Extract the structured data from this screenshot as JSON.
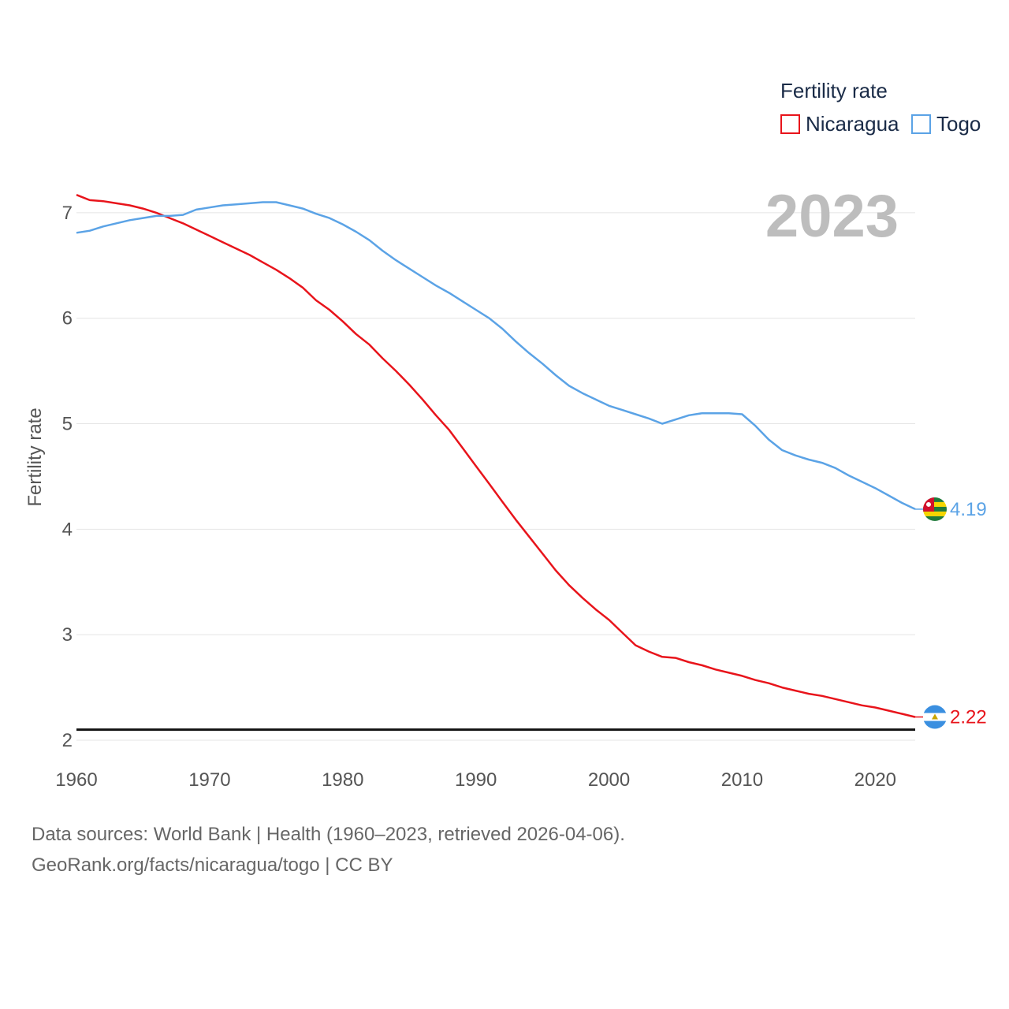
{
  "footer": {
    "source_line": "Data sources: World Bank | Health (1960–2023, retrieved 2026-04-06).",
    "credit_line": "GeoRank.org/facts/nicaragua/togo | CC BY"
  },
  "chart_data": {
    "type": "line",
    "title": "Fertility rate",
    "ylabel": "Fertility rate",
    "xlabel": "",
    "current_year_label": "2023",
    "xlim": [
      1960,
      2023
    ],
    "ylim": [
      2,
      7.5
    ],
    "x_ticks": [
      1960,
      1970,
      1980,
      1990,
      2000,
      2010,
      2020
    ],
    "y_ticks": [
      2,
      3,
      4,
      5,
      6,
      7
    ],
    "reference_line": 2.1,
    "legend": {
      "title": "Fertility rate",
      "position": "top-right"
    },
    "x": [
      1960,
      1961,
      1962,
      1963,
      1964,
      1965,
      1966,
      1967,
      1968,
      1969,
      1970,
      1971,
      1972,
      1973,
      1974,
      1975,
      1976,
      1977,
      1978,
      1979,
      1980,
      1981,
      1982,
      1983,
      1984,
      1985,
      1986,
      1987,
      1988,
      1989,
      1990,
      1991,
      1992,
      1993,
      1994,
      1995,
      1996,
      1997,
      1998,
      1999,
      2000,
      2001,
      2002,
      2003,
      2004,
      2005,
      2006,
      2007,
      2008,
      2009,
      2010,
      2011,
      2012,
      2013,
      2014,
      2015,
      2016,
      2017,
      2018,
      2019,
      2020,
      2021,
      2022,
      2023
    ],
    "series": [
      {
        "name": "Nicaragua",
        "color": "#e8141b",
        "end_label": "2.22",
        "flag": "nicaragua-flag",
        "values": [
          7.17,
          7.12,
          7.11,
          7.09,
          7.07,
          7.04,
          7.0,
          6.95,
          6.9,
          6.84,
          6.78,
          6.72,
          6.66,
          6.6,
          6.53,
          6.46,
          6.38,
          6.29,
          6.17,
          6.08,
          5.97,
          5.85,
          5.75,
          5.62,
          5.5,
          5.37,
          5.23,
          5.08,
          4.94,
          4.77,
          4.6,
          4.43,
          4.26,
          4.09,
          3.93,
          3.77,
          3.61,
          3.47,
          3.35,
          3.24,
          3.14,
          3.02,
          2.9,
          2.84,
          2.79,
          2.78,
          2.74,
          2.71,
          2.67,
          2.64,
          2.61,
          2.57,
          2.54,
          2.5,
          2.47,
          2.44,
          2.42,
          2.39,
          2.36,
          2.33,
          2.31,
          2.28,
          2.25,
          2.22
        ]
      },
      {
        "name": "Togo",
        "color": "#5ba3e6",
        "end_label": "4.19",
        "flag": "togo-flag",
        "values": [
          6.81,
          6.83,
          6.87,
          6.9,
          6.93,
          6.95,
          6.97,
          6.97,
          6.98,
          7.03,
          7.05,
          7.07,
          7.08,
          7.09,
          7.1,
          7.1,
          7.07,
          7.04,
          6.99,
          6.95,
          6.89,
          6.82,
          6.74,
          6.64,
          6.55,
          6.47,
          6.39,
          6.31,
          6.24,
          6.16,
          6.08,
          6.0,
          5.9,
          5.78,
          5.67,
          5.57,
          5.46,
          5.36,
          5.29,
          5.23,
          5.17,
          5.13,
          5.09,
          5.05,
          5.0,
          5.04,
          5.08,
          5.1,
          5.1,
          5.1,
          5.09,
          4.98,
          4.85,
          4.75,
          4.7,
          4.66,
          4.63,
          4.58,
          4.51,
          4.45,
          4.39,
          4.32,
          4.25,
          4.19
        ]
      }
    ]
  }
}
